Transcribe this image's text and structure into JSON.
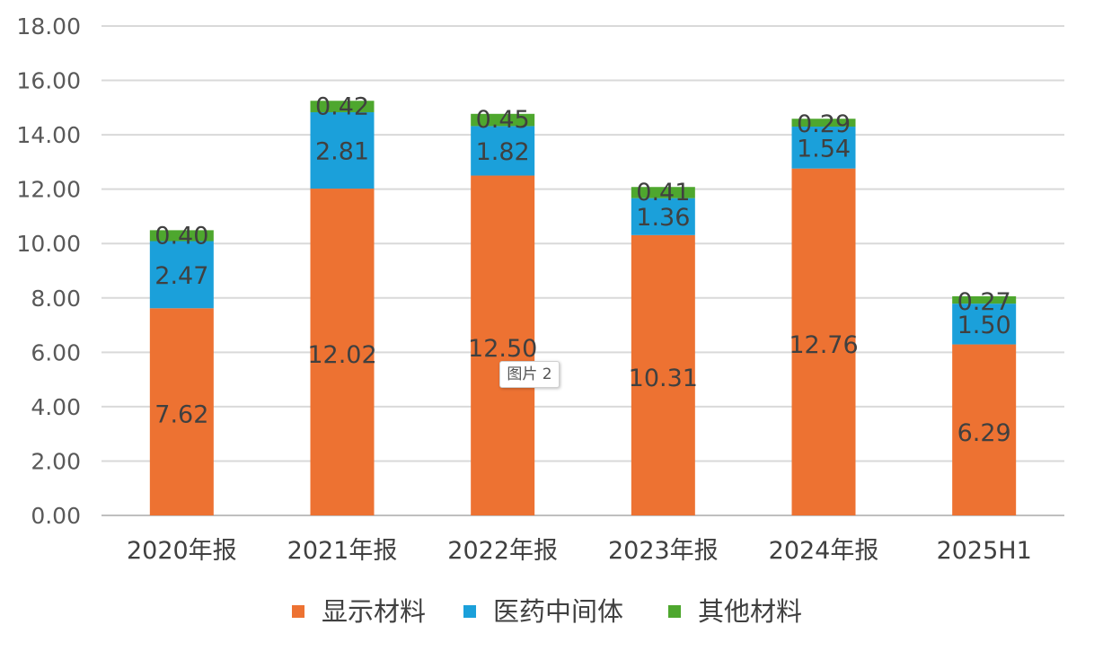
{
  "chart_data": {
    "type": "bar",
    "stacked": true,
    "categories": [
      "2020年报",
      "2021年报",
      "2022年报",
      "2023年报",
      "2024年报",
      "2025H1"
    ],
    "series": [
      {
        "name": "显示材料",
        "color": "#ED7232",
        "values": [
          7.62,
          12.02,
          12.5,
          10.31,
          12.76,
          6.29
        ],
        "labels": [
          "7.62",
          "12.02",
          "12.50",
          "10.31",
          "12.76",
          "6.29"
        ]
      },
      {
        "name": "医药中间体",
        "color": "#1BA0DA",
        "values": [
          2.47,
          2.81,
          1.82,
          1.36,
          1.54,
          1.5
        ],
        "labels": [
          "2.47",
          "2.81",
          "1.82",
          "1.36",
          "1.54",
          "1.50"
        ]
      },
      {
        "name": "其他材料",
        "color": "#4EA72E",
        "values": [
          0.4,
          0.42,
          0.45,
          0.41,
          0.29,
          0.27
        ],
        "labels": [
          "0.40",
          "0.42",
          "0.45",
          "0.41",
          "0.29",
          "0.27"
        ]
      }
    ],
    "ylim": [
      0,
      18
    ],
    "yticks": [
      "0.00",
      "2.00",
      "4.00",
      "6.00",
      "8.00",
      "10.00",
      "12.00",
      "14.00",
      "16.00",
      "18.00"
    ],
    "grid": true,
    "legend_position": "bottom"
  },
  "overlay": {
    "tooltip": "图片 2"
  }
}
